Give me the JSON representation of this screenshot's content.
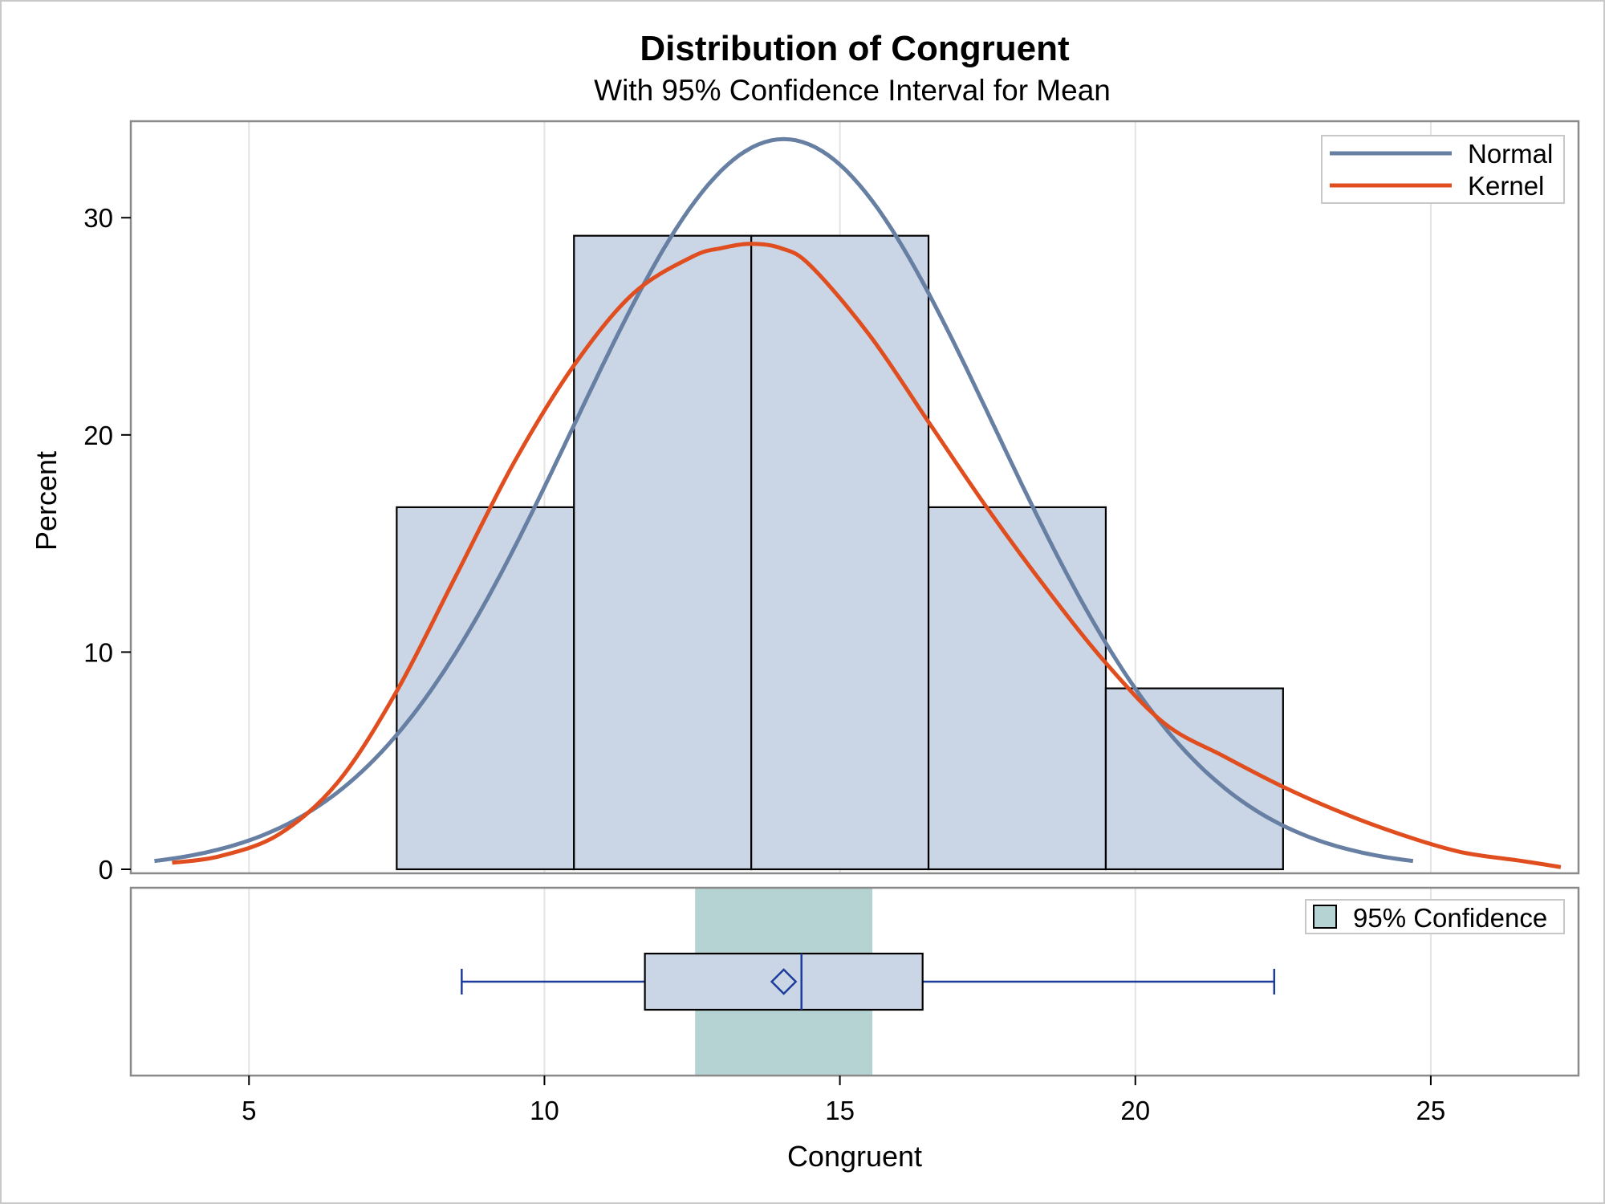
{
  "chart_data": {
    "type": "bar",
    "title": "Distribution of Congruent",
    "subtitle": "With 95% Confidence Interval for Mean",
    "xlabel": "Congruent",
    "ylabel": "Percent",
    "xlim": [
      3,
      27.5
    ],
    "ylim": [
      0,
      34
    ],
    "x_ticks": [
      5,
      10,
      15,
      20,
      25
    ],
    "y_ticks": [
      0,
      10,
      20,
      30
    ],
    "grid": "vertical",
    "legend_placement": "top-right",
    "histogram": {
      "bin_edges": [
        7.5,
        10.5,
        13.5,
        16.5,
        19.5,
        22.5
      ],
      "values": [
        16.67,
        29.17,
        29.17,
        16.67,
        8.33
      ],
      "color": "#cad5e5"
    },
    "series": [
      {
        "name": "Normal",
        "color": "#667fa2",
        "mean": 14.05,
        "std": 3.56,
        "bin_width": 3,
        "x_range": [
          3.4,
          24.7
        ]
      },
      {
        "name": "Kernel",
        "color": "#e04e1f",
        "x": [
          3.7,
          4.5,
          5.5,
          6.5,
          7.5,
          8.5,
          9.5,
          10.5,
          11.5,
          12.5,
          13.0,
          13.5,
          14.0,
          14.5,
          15.5,
          16.5,
          17.5,
          18.5,
          19.5,
          20.5,
          21.5,
          22.5,
          23.5,
          24.5,
          25.5,
          26.5,
          27.2
        ],
        "y": [
          0.3,
          0.6,
          1.6,
          4.0,
          8.2,
          13.5,
          18.8,
          23.2,
          26.5,
          28.2,
          28.6,
          28.8,
          28.6,
          27.8,
          24.6,
          20.6,
          16.6,
          12.9,
          9.5,
          6.7,
          5.2,
          3.8,
          2.6,
          1.6,
          0.8,
          0.4,
          0.1
        ]
      }
    ],
    "box_plot": {
      "min": 8.6,
      "q1": 11.7,
      "median": 14.35,
      "mean": 14.05,
      "q3": 16.4,
      "max": 22.35,
      "confidence_interval": [
        12.55,
        15.55
      ],
      "confidence_label": "95% Confidence",
      "box_color": "#cad5e5",
      "line_color": "#1d3d9c",
      "ci_color": "#b5d3d2"
    }
  }
}
